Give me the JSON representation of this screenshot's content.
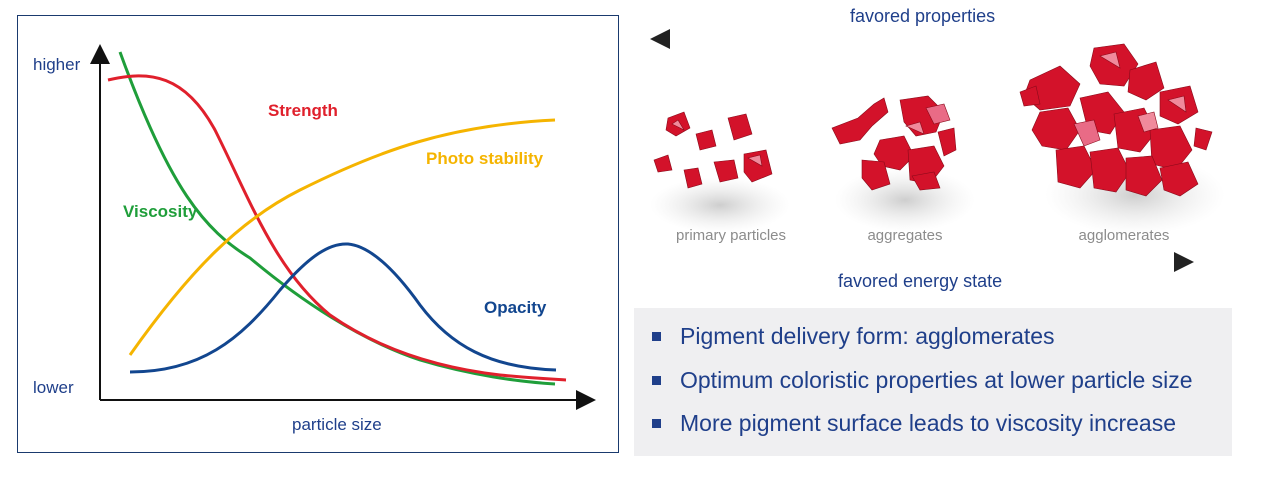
{
  "chart": {
    "y_high": "higher",
    "y_low": "lower",
    "x_label": "particle size",
    "curves": {
      "strength": {
        "label": "Strength",
        "color": "#e0202c"
      },
      "photo": {
        "label": "Photo stability",
        "color": "#f5b400"
      },
      "viscosity": {
        "label": "Viscosity",
        "color": "#1f9e3a"
      },
      "opacity": {
        "label": "Opacity",
        "color": "#12468f"
      }
    }
  },
  "right": {
    "top_arrow_label": "favored properties",
    "bottom_arrow_label": "favored energy state",
    "captions": [
      "primary particles",
      "aggregates",
      "agglomerates"
    ]
  },
  "bullets": [
    "Pigment delivery form: agglomerates",
    "Optimum coloristic properties at lower particle size",
    "More pigment surface leads to viscosity increase"
  ]
}
